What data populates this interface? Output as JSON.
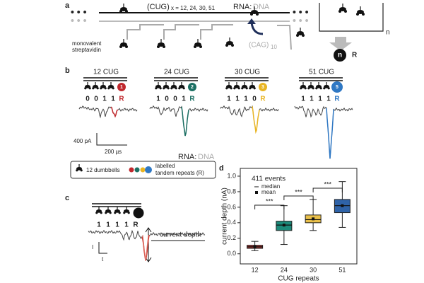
{
  "panel_a": {
    "label": "a",
    "cug": "(CUG)",
    "cug_sub": "x = 12, 24, 30, 51",
    "rna": "RNA:",
    "dna": "DNA",
    "linker": [
      "monovalent",
      "streptavidin"
    ],
    "cag": "(CAG)",
    "cag_sub": "10",
    "repeat": "n",
    "node": "n",
    "node_tag": "R"
  },
  "panel_b": {
    "label": "b",
    "constructs": [
      {
        "title": "12 CUG",
        "code": [
          "0",
          "0",
          "1",
          "1",
          "R"
        ],
        "tag": "1",
        "color": "#c0282d"
      },
      {
        "title": "24 CUG",
        "code": [
          "1",
          "0",
          "0",
          "1",
          "R"
        ],
        "tag": "2",
        "color": "#1b6f63"
      },
      {
        "title": "30 CUG",
        "code": [
          "1",
          "1",
          "1",
          "0",
          "R"
        ],
        "tag": "3",
        "color": "#e9b523"
      },
      {
        "title": "51 CUG",
        "code": [
          "1",
          "1",
          "1",
          "1",
          "R"
        ],
        "tag": "5",
        "color": "#2f78c4"
      }
    ],
    "scale_y": "400 pA",
    "scale_x": "200 µs",
    "rna": "RNA:",
    "dna": "DNA",
    "legend": {
      "dumbbells": "12 dumbbells",
      "labels": [
        "labelled",
        "tandem repeats (R)"
      ]
    }
  },
  "panel_c": {
    "label": "c",
    "code": [
      "1",
      "1",
      "1",
      "1",
      "R"
    ],
    "depth": "current depth",
    "axis_i": "I",
    "axis_t": "t"
  },
  "chart_data": {
    "type": "box",
    "label": "d",
    "ylabel": "current depth (nA)",
    "xlabel": "CUG repeats",
    "categories": [
      "12",
      "24",
      "30",
      "51"
    ],
    "colors": [
      "#b0342f",
      "#1c8a7a",
      "#e8bf4a",
      "#2f63a8"
    ],
    "boxes": [
      {
        "whislo": 0.04,
        "q1": 0.07,
        "med": 0.09,
        "q3": 0.11,
        "whishi": 0.16,
        "mean": 0.09
      },
      {
        "whislo": 0.12,
        "q1": 0.3,
        "med": 0.37,
        "q3": 0.42,
        "whishi": 0.62,
        "mean": 0.37
      },
      {
        "whislo": 0.3,
        "q1": 0.4,
        "med": 0.44,
        "q3": 0.5,
        "whishi": 0.7,
        "mean": 0.45
      },
      {
        "whislo": 0.34,
        "q1": 0.53,
        "med": 0.62,
        "q3": 0.7,
        "whishi": 0.93,
        "mean": 0.62
      }
    ],
    "ylim": [
      -0.13,
      1.1
    ],
    "yticks": [
      {
        "value": 0,
        "label": "0.0"
      },
      {
        "value": 0.2,
        "label": "0.2"
      },
      {
        "value": 0.4,
        "label": "0.4"
      },
      {
        "value": 0.6,
        "label": "0.6"
      },
      {
        "value": 0.8,
        "label": "0.8"
      },
      {
        "value": 1,
        "label": "1.0"
      }
    ],
    "annotation": "411 events",
    "legend": [
      "median",
      "mean"
    ],
    "significance": [
      "***",
      "***",
      "***"
    ]
  }
}
